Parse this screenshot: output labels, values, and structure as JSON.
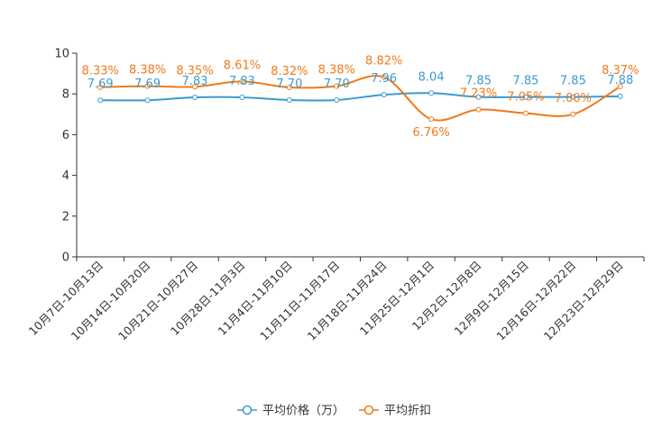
{
  "chart_data": {
    "type": "line",
    "title": "",
    "xlabel": "",
    "ylabel": "",
    "ylim": [
      0,
      10
    ],
    "yticks": [
      0,
      2,
      4,
      6,
      8,
      10
    ],
    "grid": false,
    "legend_position": "bottom",
    "categories": [
      "10月7日-10月13日",
      "10月14日-10月20日",
      "10月21日-10月27日",
      "10月28日-11月3日",
      "11月4日-11月10日",
      "11月11日-11月17日",
      "11月18日-11月24日",
      "11月25日-12月1日",
      "12月2日-12月8日",
      "12月9日-12月15日",
      "12月16日-12月22日",
      "12月23日-12月29日"
    ],
    "series": [
      {
        "name": "平均价格（万）",
        "color": "#3a9bd1",
        "values": [
          7.69,
          7.69,
          7.83,
          7.83,
          7.7,
          7.7,
          7.96,
          8.04,
          7.85,
          7.85,
          7.85,
          7.88
        ],
        "labels": [
          "7.69",
          "7.69",
          "7.83",
          "7.83",
          "7.70",
          "7.70",
          "7.96",
          "8.04",
          "7.85",
          "7.85",
          "7.85",
          "7.88"
        ]
      },
      {
        "name": "平均折扣",
        "color": "#ef7a1a",
        "values": [
          8.33,
          8.38,
          8.35,
          8.61,
          8.32,
          8.38,
          8.82,
          6.76,
          7.23,
          7.05,
          7.0,
          8.37
        ],
        "labels": [
          "8.33%",
          "8.38%",
          "8.35%",
          "8.61%",
          "8.32%",
          "8.38%",
          "8.82%",
          "6.76%",
          "7.23%",
          "7.05%",
          "7.00%",
          "8.37%"
        ]
      }
    ]
  }
}
